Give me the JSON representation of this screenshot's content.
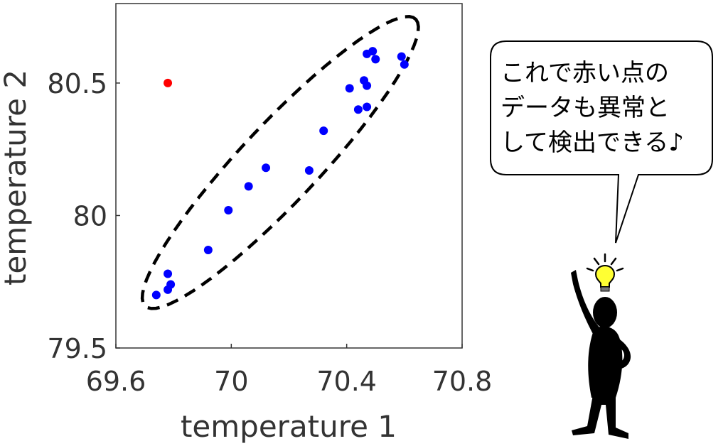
{
  "chart_data": {
    "type": "scatter",
    "title": "",
    "xlabel": "temperature 1",
    "ylabel": "temperature 2",
    "xlim": [
      69.6,
      70.8
    ],
    "ylim": [
      79.5,
      80.8
    ],
    "xticks": [
      "69.6",
      "70",
      "70.4",
      "70.8"
    ],
    "xtick_values": [
      69.6,
      70.0,
      70.4,
      70.8
    ],
    "yticks": [
      "79.5",
      "80",
      "80.5"
    ],
    "ytick_values": [
      79.5,
      80.0,
      80.5
    ],
    "grid": false,
    "series": [
      {
        "color": "#0000ff",
        "points": [
          [
            69.74,
            79.7
          ],
          [
            69.78,
            79.72
          ],
          [
            69.79,
            79.74
          ],
          [
            69.78,
            79.78
          ],
          [
            69.92,
            79.87
          ],
          [
            69.99,
            80.02
          ],
          [
            70.06,
            80.11
          ],
          [
            70.12,
            80.18
          ],
          [
            70.27,
            80.17
          ],
          [
            70.32,
            80.32
          ],
          [
            70.41,
            80.48
          ],
          [
            70.44,
            80.4
          ],
          [
            70.47,
            80.41
          ],
          [
            70.46,
            80.51
          ],
          [
            70.47,
            80.49
          ],
          [
            70.47,
            80.61
          ],
          [
            70.49,
            80.62
          ],
          [
            70.5,
            80.59
          ],
          [
            70.59,
            80.6
          ],
          [
            70.6,
            80.57
          ]
        ]
      },
      {
        "color": "#ff0000",
        "points": [
          [
            69.78,
            80.5
          ]
        ]
      }
    ],
    "ellipse": {
      "style": "dashed",
      "color": "#000000",
      "center": [
        70.17,
        80.2
      ],
      "tip_low": [
        69.7,
        79.66
      ],
      "tip_high": [
        70.64,
        80.74
      ],
      "half_width_data": [
        0.09,
        -0.11
      ]
    }
  },
  "speech_bubble": {
    "lines": [
      "これで赤い点の",
      "データも異常と",
      "して検出できる♪"
    ]
  },
  "illustration": {
    "figure": "thinking-person-icon",
    "lightbulb": "lightbulb-icon",
    "lightbulb_color": "#ffff33"
  }
}
